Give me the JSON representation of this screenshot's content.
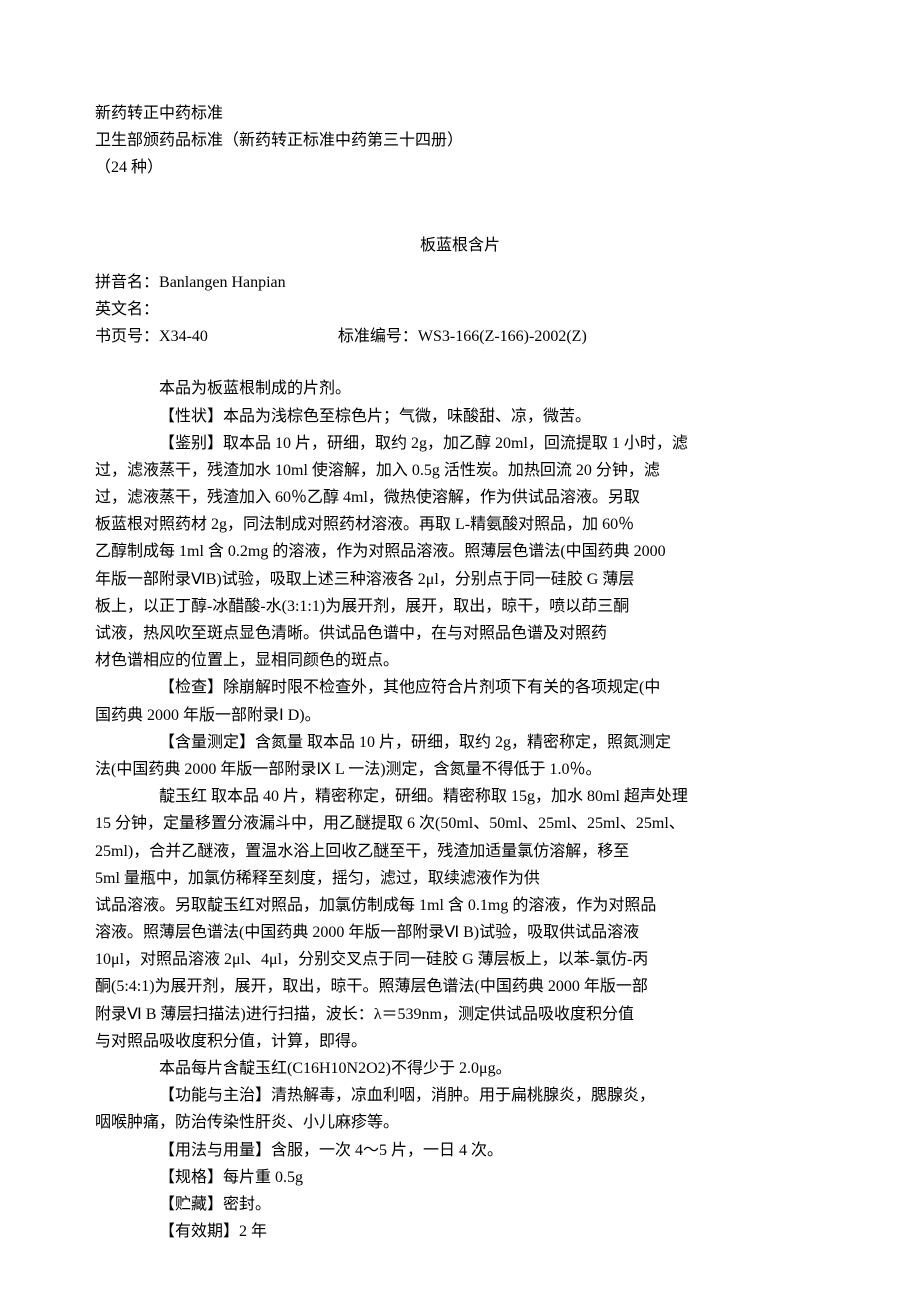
{
  "header": {
    "line1": "新药转正中药标准",
    "line2": "卫生部颁药品标准（新药转正标准中药第三十四册）",
    "line3": "（24 种）"
  },
  "title": "板蓝根含片",
  "meta": {
    "pinyin_label": "拼音名：",
    "pinyin_value": "Banlangen Hanpian",
    "english_label": "英文名：",
    "english_value": "",
    "book_label": "书页号：",
    "book_value": "X34-40",
    "standard_label": "标准编号：",
    "standard_value": "WS3-166(Z-166)-2002(Z)"
  },
  "paragraphs": {
    "p1": "本品为板蓝根制成的片剂。",
    "p2": "【性状】本品为浅棕色至棕色片；气微，味酸甜、凉，微苦。",
    "p3a": "【鉴别】取本品 10 片，研细，取约 2g，加乙醇 20ml，回流提取 1 小时，滤",
    "p3b": "过，滤液蒸干，残渣加水 10ml 使溶解，加入 0.5g 活性炭。加热回流 20 分钟，滤",
    "p3c": "过，滤液蒸干，残渣加入 60％乙醇 4ml，微热使溶解，作为供试品溶液。另取",
    "p3d": "板蓝根对照药材 2g，同法制成对照药材溶液。再取 L-精氨酸对照品，加 60％",
    "p3e": "乙醇制成每 1ml 含 0.2mg 的溶液，作为对照品溶液。照薄层色谱法(中国药典 2000",
    "p3f": "年版一部附录ⅥB)试验，吸取上述三种溶液各 2μl，分别点于同一硅胶 G 薄层",
    "p3g": "板上，以正丁醇-冰醋酸-水(3:1:1)为展开剂，展开，取出，晾干，喷以茚三酮",
    "p3h": "试液，热风吹至斑点显色清晰。供试品色谱中，在与对照品色谱及对照药",
    "p3i": "材色谱相应的位置上，显相同颜色的斑点。",
    "p4a": "【检查】除崩解时限不检查外，其他应符合片剂项下有关的各项规定(中",
    "p4b": "国药典 2000 年版一部附录Ⅰ D)。",
    "p5a": "【含量测定】含氮量  取本品 10 片，研细，取约 2g，精密称定，照氮测定",
    "p5b": "法(中国药典 2000 年版一部附录Ⅸ L 一法)测定，含氮量不得低于 1.0％。",
    "p6a": "靛玉红  取本品 40 片，精密称定，研细。精密称取 15g，加水 80ml 超声处理",
    "p6b": "15 分钟，定量移置分液漏斗中，用乙醚提取 6 次(50ml、50ml、25ml、25ml、25ml、",
    "p6c": "25ml)，合并乙醚液，置温水浴上回收乙醚至干，残渣加适量氯仿溶解，移至",
    "p6d": "5ml 量瓶中，加氯仿稀释至刻度，摇匀，滤过，取续滤液作为供",
    "p6e": "试品溶液。另取靛玉红对照品，加氯仿制成每 1ml 含 0.1mg 的溶液，作为对照品",
    "p6f": "溶液。照薄层色谱法(中国药典 2000 年版一部附录Ⅵ B)试验，吸取供试品溶液",
    "p6g": "10μl，对照品溶液 2μl、4μl，分别交叉点于同一硅胶 G 薄层板上，以苯-氯仿-丙",
    "p6h": "酮(5:4:1)为展开剂，展开，取出，晾干。照薄层色谱法(中国药典 2000 年版一部",
    "p6i": "附录Ⅵ B 薄层扫描法)进行扫描，波长：λ＝539nm，测定供试品吸收度积分值",
    "p6j": "与对照品吸收度积分值，计算，即得。",
    "p7": "本品每片含靛玉红(C16H10N2O2)不得少于 2.0μg。",
    "p8a": "【功能与主治】清热解毒，凉血利咽，消肿。用于扁桃腺炎，腮腺炎，",
    "p8b": "咽喉肿痛，防治传染性肝炎、小儿麻疹等。",
    "p9": "【用法与用量】含服，一次 4～5 片，一日 4 次。",
    "p10": "【规格】每片重 0.5g",
    "p11": "【贮藏】密封。",
    "p12": "【有效期】2 年"
  },
  "colors": {
    "background": "#ffffff",
    "text": "#000000"
  },
  "typography": {
    "font_family": "SimSun",
    "font_size_pt": 12,
    "line_height": 1.7
  }
}
